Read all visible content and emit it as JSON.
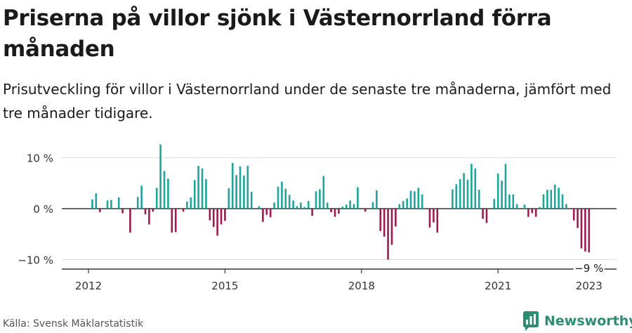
{
  "title": "Priserna på villor sjönk i Västernorrland förra månaden",
  "subtitle": "Prisutveckling för villor i Västernorrland under de senaste tre månaderna, jämfört med tre månader tidigare.",
  "source": "Källa: Svensk Mäklarstatistik",
  "brand": "Newsworthy",
  "colors": {
    "positive": "#1fa39b",
    "negative": "#9c1a4f",
    "brand": "#2e8c74",
    "grid": "#dddddd",
    "axis": "#333333"
  },
  "chart_data": {
    "type": "bar",
    "title": "",
    "xlabel": "",
    "ylabel": "",
    "ylim": [
      -12,
      12
    ],
    "yticks": [
      {
        "value": 10,
        "label": "10 %"
      },
      {
        "value": 0,
        "label": "0 %"
      },
      {
        "value": -10,
        "label": "−10 %"
      }
    ],
    "xticks": [
      "2012",
      "2015",
      "2018",
      "2021",
      "2023"
    ],
    "grid": true,
    "last_value_label": "−9 %",
    "start": "2012-02",
    "end": "2023-01",
    "categories": [
      "2012-02",
      "2012-03",
      "2012-04",
      "2012-05",
      "2012-06",
      "2012-07",
      "2012-08",
      "2012-09",
      "2012-10",
      "2012-11",
      "2012-12",
      "2013-01",
      "2013-02",
      "2013-03",
      "2013-04",
      "2013-05",
      "2013-06",
      "2013-07",
      "2013-08",
      "2013-09",
      "2013-10",
      "2013-11",
      "2013-12",
      "2014-01",
      "2014-02",
      "2014-03",
      "2014-04",
      "2014-05",
      "2014-06",
      "2014-07",
      "2014-08",
      "2014-09",
      "2014-10",
      "2014-11",
      "2014-12",
      "2015-01",
      "2015-02",
      "2015-03",
      "2015-04",
      "2015-05",
      "2015-06",
      "2015-07",
      "2015-08",
      "2015-09",
      "2015-10",
      "2015-11",
      "2015-12",
      "2016-01",
      "2016-02",
      "2016-03",
      "2016-04",
      "2016-05",
      "2016-06",
      "2016-07",
      "2016-08",
      "2016-09",
      "2016-10",
      "2016-11",
      "2016-12",
      "2017-01",
      "2017-02",
      "2017-03",
      "2017-04",
      "2017-05",
      "2017-06",
      "2017-07",
      "2017-08",
      "2017-09",
      "2017-10",
      "2017-11",
      "2017-12",
      "2018-01",
      "2018-02",
      "2018-03",
      "2018-04",
      "2018-05",
      "2018-06",
      "2018-07",
      "2018-08",
      "2018-09",
      "2018-10",
      "2018-11",
      "2018-12",
      "2019-01",
      "2019-02",
      "2019-03",
      "2019-04",
      "2019-05",
      "2019-06",
      "2019-07",
      "2019-08",
      "2019-09",
      "2019-10",
      "2019-11",
      "2019-12",
      "2020-01",
      "2020-02",
      "2020-03",
      "2020-04",
      "2020-05",
      "2020-06",
      "2020-07",
      "2020-08",
      "2020-09",
      "2020-10",
      "2020-11",
      "2020-12",
      "2021-01",
      "2021-02",
      "2021-03",
      "2021-04",
      "2021-05",
      "2021-06",
      "2021-07",
      "2021-08",
      "2021-09",
      "2021-10",
      "2021-11",
      "2021-12",
      "2022-01",
      "2022-02",
      "2022-03",
      "2022-04",
      "2022-05",
      "2022-06",
      "2022-07",
      "2022-08",
      "2022-09",
      "2022-10",
      "2022-11",
      "2022-12",
      "2023-01"
    ],
    "values": [
      1.8,
      3.0,
      -0.7,
      0,
      1.6,
      1.7,
      0,
      2.2,
      -0.9,
      0,
      -4.7,
      0,
      2.3,
      4.5,
      -1.1,
      -3.1,
      -0.6,
      4.1,
      12.6,
      7.4,
      5.9,
      -4.7,
      -4.6,
      0,
      -0.6,
      1.4,
      2.2,
      5.6,
      8.4,
      7.9,
      5.8,
      -2.3,
      -3.6,
      -5.3,
      -3.1,
      -2.4,
      4.0,
      9.0,
      6.6,
      8.3,
      6.5,
      8.4,
      3.3,
      0,
      0.5,
      -2.6,
      -1.2,
      -1.7,
      1.2,
      4.3,
      5.3,
      3.9,
      2.7,
      1.6,
      0.5,
      1.2,
      0.3,
      1.5,
      -1.4,
      3.4,
      3.8,
      6.4,
      1.2,
      -0.7,
      -1.6,
      -1.0,
      0.4,
      0.8,
      1.6,
      0.9,
      4.2,
      0,
      -0.6,
      0,
      1.3,
      3.6,
      -4.4,
      -5.5,
      -10.0,
      -7.1,
      -3.5,
      0.9,
      1.5,
      2.0,
      3.5,
      3.4,
      4.1,
      2.8,
      0,
      -3.7,
      -2.7,
      -4.7,
      0,
      0,
      0,
      3.8,
      4.8,
      5.8,
      7.0,
      5.7,
      8.8,
      7.9,
      3.7,
      -2.0,
      -2.8,
      0,
      1.9,
      6.9,
      5.5,
      8.8,
      2.8,
      2.8,
      0.9,
      0,
      0.8,
      -1.6,
      -0.9,
      -1.6,
      0.3,
      2.8,
      3.7,
      3.7,
      4.7,
      4.1,
      2.8,
      0.9,
      0,
      -2.3,
      -3.8,
      -7.8,
      -8.4,
      -8.6
    ]
  }
}
